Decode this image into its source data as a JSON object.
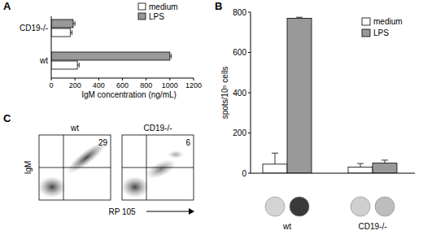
{
  "chart_data": [
    {
      "panel": "A",
      "type": "bar",
      "orientation": "horizontal",
      "categories": [
        "CD19-/-",
        "wt"
      ],
      "series": [
        {
          "name": "medium",
          "color": "#ffffff",
          "values": [
            160,
            220
          ],
          "errors": [
            15,
            15
          ]
        },
        {
          "name": "LPS",
          "color": "#999999",
          "values": [
            185,
            1000
          ],
          "errors": [
            15,
            12
          ]
        }
      ],
      "x_label": "IgM concentration (ng/mL)",
      "xlim": [
        0,
        1200
      ],
      "xticks": [
        0,
        200,
        400,
        600,
        800,
        1000,
        1200
      ],
      "legend": "top-right"
    },
    {
      "panel": "B",
      "type": "bar",
      "categories": [
        "wt",
        "CD19-/-"
      ],
      "series": [
        {
          "name": "medium",
          "color": "#ffffff",
          "values": [
            45,
            30
          ],
          "errors": [
            55,
            18
          ]
        },
        {
          "name": "LPS",
          "color": "#999999",
          "values": [
            770,
            50
          ],
          "errors": [
            5,
            15
          ]
        }
      ],
      "y_label": "spots/10⁵ cells",
      "ylim": [
        0,
        800
      ],
      "yticks": [
        0,
        200,
        400,
        600,
        800
      ],
      "legend": "top-right"
    },
    {
      "panel": "C",
      "type": "scatter",
      "title": "wt",
      "x_label": "RP 105",
      "y_label": "IgM",
      "quadrant_percent": 29,
      "tick_labels": false
    },
    {
      "type": "scatter",
      "title": "CD19-/-",
      "quadrant_percent": 6,
      "tick_labels": false
    }
  ]
}
